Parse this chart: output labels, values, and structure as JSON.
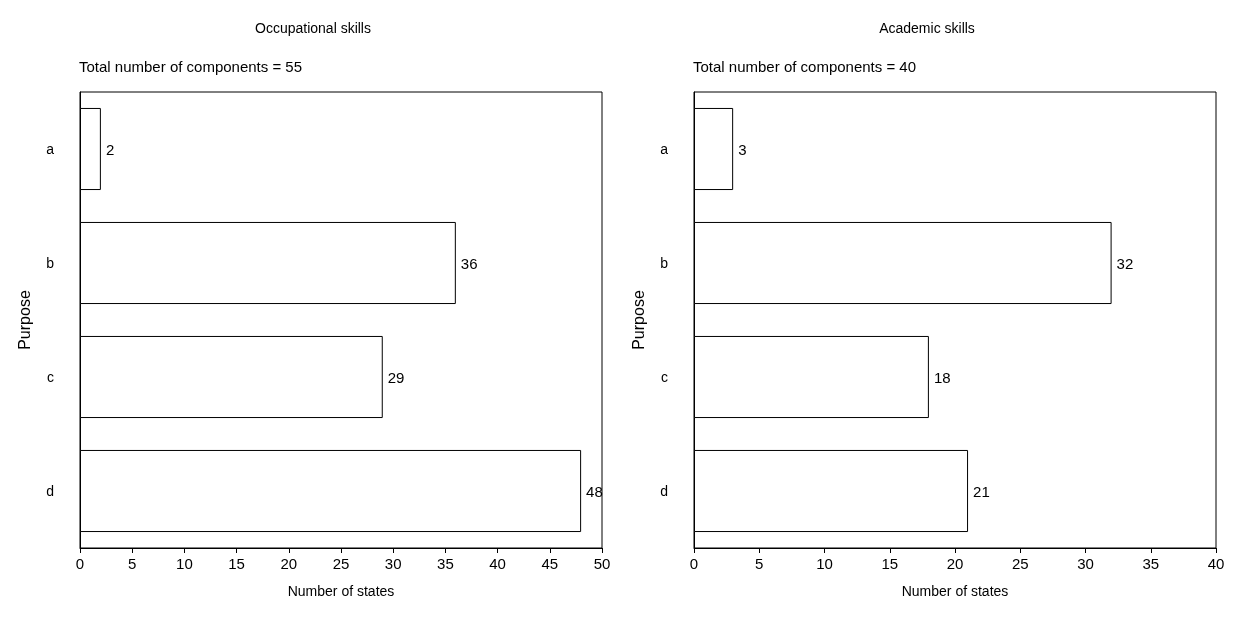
{
  "chart_data": [
    {
      "type": "bar",
      "orientation": "horizontal",
      "title": "Occupational skills",
      "subtitle": "Total number of components = 55",
      "xlabel": "Number of states",
      "ylabel": "Purpose",
      "categories": [
        "a",
        "b",
        "c",
        "d"
      ],
      "values": [
        2,
        36,
        29,
        48
      ],
      "color": "#ffffff",
      "xlim": [
        0,
        50
      ],
      "xticks": [
        0,
        5,
        10,
        15,
        20,
        25,
        30,
        35,
        40,
        45,
        50
      ],
      "data_labels": true
    },
    {
      "type": "bar",
      "orientation": "horizontal",
      "title": "Academic skills",
      "subtitle": "Total number of components = 40",
      "xlabel": "Number of states",
      "ylabel": "Purpose",
      "categories": [
        "a",
        "b",
        "c",
        "d"
      ],
      "values": [
        3,
        32,
        18,
        21
      ],
      "color": "#ffffff",
      "xlim": [
        0,
        40
      ],
      "xticks": [
        0,
        5,
        10,
        15,
        20,
        25,
        30,
        35,
        40
      ],
      "data_labels": true
    }
  ]
}
